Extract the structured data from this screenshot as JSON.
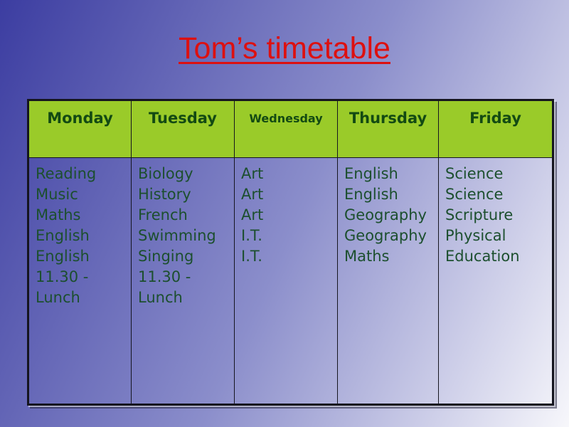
{
  "slide": {
    "title": "Tom’s timetable"
  },
  "colors": {
    "title_red": "#dd1010",
    "header_green": "#9acb29",
    "header_text_green": "#134a13",
    "body_text_green": "#1c4f2e",
    "table_border": "#15151f",
    "background_gradient_start": "#3c3da1",
    "background_gradient_end": "#f7f7fb"
  },
  "timetable": {
    "columns": [
      {
        "label": "Monday",
        "items": [
          "Reading",
          "Music",
          "Maths",
          "English",
          "English",
          "11.30 - Lunch"
        ]
      },
      {
        "label": "Tuesday",
        "items": [
          "Biology",
          "History",
          "French",
          "Swimming",
          "Singing",
          "11.30 - Lunch"
        ]
      },
      {
        "label": "Wednesday",
        "items": [
          "Art",
          "Art",
          "Art",
          "I.T.",
          "I.T."
        ]
      },
      {
        "label": "Thursday",
        "items": [
          "English",
          "English",
          "Geography",
          "Geography",
          "Maths"
        ]
      },
      {
        "label": "Friday",
        "items": [
          "Science",
          "Science",
          "Scripture",
          "Physical Education"
        ]
      }
    ]
  }
}
